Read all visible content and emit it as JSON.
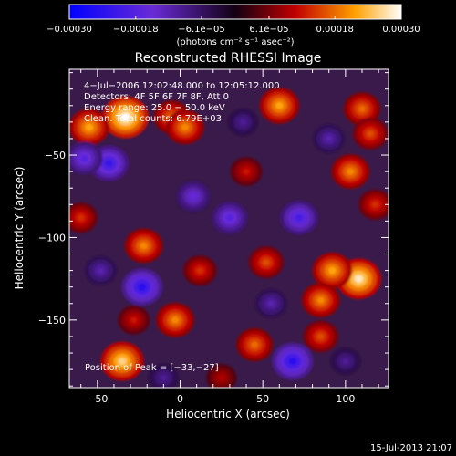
{
  "chart_data": {
    "type": "heatmap",
    "title": "Reconstructed RHESSI Image",
    "xlabel": "Heliocentric X (arcsec)",
    "ylabel": "Heliocentric Y (arcsec)",
    "xlim": [
      -67,
      126
    ],
    "ylim": [
      -191,
      2
    ],
    "xticks": [
      -50,
      0,
      50,
      100
    ],
    "yticks": [
      -50,
      -100,
      -150
    ],
    "xtick_labels": [
      "−50",
      "0",
      "50",
      "100"
    ],
    "ytick_labels": [
      "−50",
      "−100",
      "−150"
    ],
    "colorbar": {
      "range": [
        -0.0003,
        0.0003
      ],
      "tick_values": [
        -0.0003,
        -0.00018,
        -6.1e-05,
        6.1e-05,
        0.00018,
        0.0003
      ],
      "tick_labels": [
        "−0.00030",
        "−0.00018",
        "−6.1e−05",
        "6.1e−05",
        "0.00018",
        "0.00030"
      ],
      "unit_label": "(photons cm⁻² s⁻¹ asec⁻²)"
    },
    "annotations": [
      "4−Jul−2006 12:02:48.000 to 12:05:12.000",
      "Detectors: 4F 5F 6F 7F 8F, Att 0",
      "Energy range: 25.0 − 50.0 keV",
      "Clean. Total counts: 6.79E+03"
    ],
    "peak_label": "Position of Peak = [−33,−27]",
    "peak": {
      "x": -33,
      "y": -27
    },
    "sources": [
      {
        "x": -33,
        "y": -27,
        "v": 0.0003
      },
      {
        "x": -55,
        "y": -33,
        "v": 0.00022
      },
      {
        "x": -5,
        "y": -27,
        "v": 0.00018
      },
      {
        "x": 3,
        "y": -33,
        "v": 0.0002
      },
      {
        "x": 60,
        "y": -20,
        "v": 0.00022
      },
      {
        "x": 110,
        "y": -22,
        "v": 0.00018
      },
      {
        "x": 115,
        "y": -37,
        "v": 0.00016
      },
      {
        "x": 103,
        "y": -60,
        "v": 0.0002
      },
      {
        "x": 118,
        "y": -80,
        "v": 0.00014
      },
      {
        "x": 108,
        "y": -125,
        "v": 0.00028
      },
      {
        "x": 92,
        "y": -120,
        "v": 0.00022
      },
      {
        "x": 85,
        "y": -138,
        "v": 0.0002
      },
      {
        "x": 85,
        "y": -160,
        "v": 0.00016
      },
      {
        "x": -35,
        "y": -175,
        "v": 0.00026
      },
      {
        "x": -22,
        "y": -105,
        "v": 0.0002
      },
      {
        "x": 12,
        "y": -120,
        "v": 0.00014
      },
      {
        "x": -3,
        "y": -150,
        "v": 0.0002
      },
      {
        "x": 45,
        "y": -165,
        "v": 0.00018
      },
      {
        "x": 52,
        "y": -115,
        "v": 0.00016
      },
      {
        "x": -60,
        "y": -88,
        "v": 0.00014
      },
      {
        "x": 40,
        "y": -60,
        "v": 0.00012
      },
      {
        "x": -28,
        "y": -150,
        "v": 0.00012
      },
      {
        "x": 25,
        "y": -185,
        "v": 0.0001
      },
      {
        "x": -43,
        "y": -55,
        "v": -0.00022
      },
      {
        "x": -58,
        "y": -52,
        "v": -0.00018
      },
      {
        "x": -23,
        "y": -130,
        "v": -0.00024
      },
      {
        "x": 68,
        "y": -175,
        "v": -0.00024
      },
      {
        "x": 72,
        "y": -88,
        "v": -0.0002
      },
      {
        "x": 30,
        "y": -88,
        "v": -0.00018
      },
      {
        "x": 8,
        "y": -75,
        "v": -0.00016
      },
      {
        "x": 55,
        "y": -140,
        "v": -0.00012
      },
      {
        "x": -48,
        "y": -120,
        "v": -0.00012
      },
      {
        "x": 90,
        "y": -40,
        "v": -0.00012
      },
      {
        "x": 38,
        "y": -30,
        "v": -0.0001
      },
      {
        "x": -10,
        "y": -185,
        "v": -0.0001
      },
      {
        "x": 100,
        "y": -175,
        "v": -0.0001
      }
    ]
  },
  "footer": {
    "timestamp": "15-Jul-2013 21:07"
  }
}
